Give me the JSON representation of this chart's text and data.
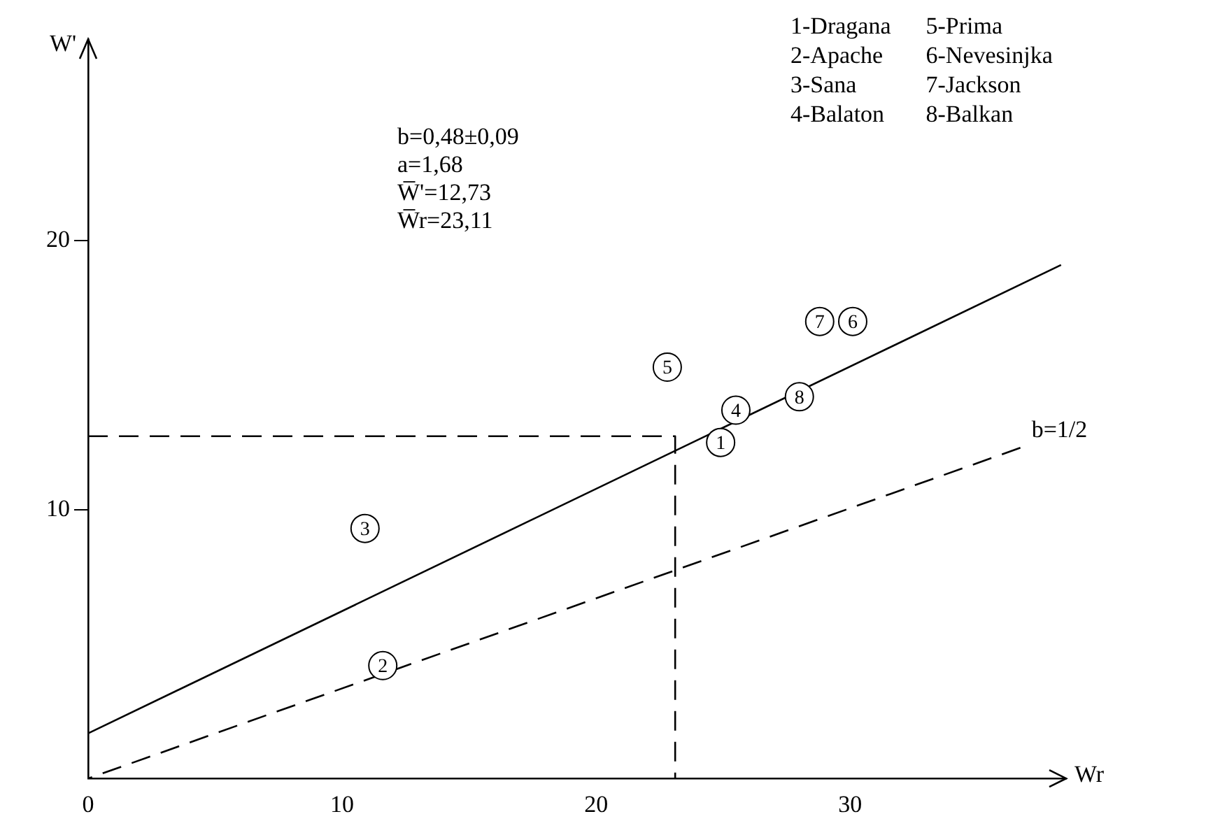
{
  "chart_data": {
    "type": "scatter",
    "xlabel": "Wr",
    "ylabel": "W'",
    "xlim": [
      0,
      38.5
    ],
    "ylim": [
      0,
      27.5
    ],
    "xticks": [
      0,
      10,
      20,
      30
    ],
    "yticks": [
      10,
      20
    ],
    "grid": false,
    "legend": false,
    "marker": "circle",
    "series": [
      {
        "name": "1",
        "color": "#000000",
        "x": [
          24.9
        ],
        "values": [
          12.5
        ]
      },
      {
        "name": "2",
        "color": "#000000",
        "x": [
          11.6
        ],
        "values": [
          4.2
        ]
      },
      {
        "name": "3",
        "color": "#000000",
        "x": [
          10.9
        ],
        "values": [
          9.3
        ]
      },
      {
        "name": "4",
        "color": "#000000",
        "x": [
          25.5
        ],
        "values": [
          13.7
        ]
      },
      {
        "name": "5",
        "color": "#000000",
        "x": [
          22.8
        ],
        "values": [
          15.3
        ]
      },
      {
        "name": "6",
        "color": "#000000",
        "x": [
          30.1
        ],
        "values": [
          17.0
        ]
      },
      {
        "name": "7",
        "color": "#000000",
        "x": [
          28.8
        ],
        "values": [
          17.0
        ]
      },
      {
        "name": "8",
        "color": "#000000",
        "x": [
          28.0
        ],
        "values": [
          14.2
        ]
      },
      {
        "type": "line",
        "color": "#000000",
        "marker": "none",
        "line_style": "solid",
        "x": [
          0,
          38.3
        ],
        "values": [
          1.68,
          19.1
        ]
      },
      {
        "type": "line",
        "name": "b=1/2",
        "color": "#000000",
        "marker": "none",
        "line_style": "dashed",
        "x": [
          36.7,
          0
        ],
        "values": [
          12.3,
          0
        ]
      },
      {
        "type": "line",
        "color": "#000000",
        "marker": "none",
        "line_style": "dashed",
        "x": [
          0,
          23.11,
          23.11
        ],
        "values": [
          12.73,
          12.73,
          0
        ]
      }
    ],
    "annotations": [
      "b=0,48±0,09\na=1,68\nW̅'=12,73\nW̅r=23,11",
      "1-Dragana",
      "2-Apache",
      "3-Sana",
      "4-Balaton",
      "5-Prima",
      "6-Nevesinjka",
      "7-Jackson",
      "8-Balkan"
    ]
  }
}
